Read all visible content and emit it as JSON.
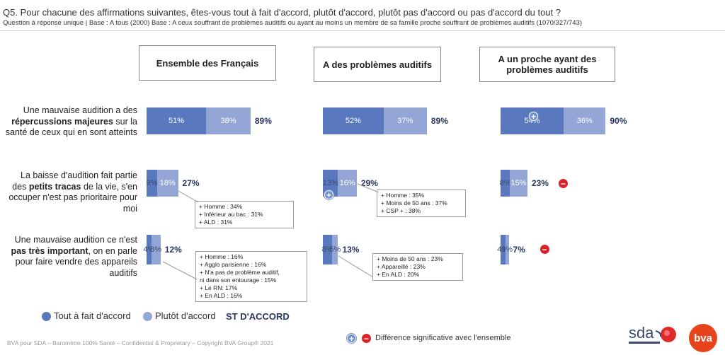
{
  "header": {
    "question": "Q5. Pour chacune des affirmations suivantes, êtes-vous tout à fait d'accord, plutôt d'accord, plutôt pas d'accord ou pas d'accord du tout ?",
    "base": "Question à réponse unique | Base : A tous (2000) Base : A ceux souffrant de problèmes auditifs ou ayant au moins un membre de sa famille proche souffrant de problèmes auditifs (1070/327/743)"
  },
  "columns": [
    "Ensemble des Français",
    "A des problèmes auditifs",
    "A un proche ayant des problèmes auditifs"
  ],
  "rows": [
    {
      "pre": "Une mauvaise audition a des",
      "bold": "répercussions majeures",
      "post": "sur la santé de ceux qui en sont atteints"
    },
    {
      "pre": "La baisse d'audition fait partie des",
      "bold": "petits tracas",
      "post": "de la vie, s'en occuper n'est pas prioritaire pour moi"
    },
    {
      "pre": "Une mauvaise audition ce n'est",
      "bold": "pas très important",
      "post": ", on en parle pour faire vendre des appareils auditifs"
    }
  ],
  "chart_data": {
    "type": "bar",
    "stacked": true,
    "orientation": "horizontal",
    "series": [
      {
        "name": "Tout à fait d'accord",
        "color": "#5a78be",
        "values": [
          [
            51,
            52,
            54
          ],
          [
            9,
            13,
            8
          ],
          [
            4,
            8,
            4
          ]
        ]
      },
      {
        "name": "Plutôt d'accord",
        "color": "#94a6d6",
        "values": [
          [
            38,
            37,
            36
          ],
          [
            18,
            16,
            15
          ],
          [
            8,
            5,
            3
          ]
        ]
      }
    ],
    "totals_label": "ST D'ACCORD",
    "totals": [
      [
        89,
        89,
        90
      ],
      [
        27,
        29,
        23
      ],
      [
        12,
        13,
        7
      ]
    ],
    "significance": [
      [
        "",
        "",
        "plus"
      ],
      [
        "",
        "plus",
        "minus"
      ],
      [
        "",
        "",
        "minus"
      ]
    ]
  },
  "notes": {
    "r1c0": [
      "+ Homme : 34%",
      "+ Inférieur au bac : 31%",
      "+ ALD : 31%"
    ],
    "r1c1": [
      "+ Homme : 35%",
      "+ Moins de 50 ans : 37%",
      "+ CSP + : 38%"
    ],
    "r2c0": [
      "+ Homme : 16%",
      "+ Agglo parisienne : 16%",
      "+ N'a pas de problème auditif,",
      "ni dans son entourage : 15%",
      "+ Le RN: 17%",
      "+ En ALD : 16%"
    ],
    "r2c1": [
      "+ Moins de 50 ans : 23%",
      "+ Appareillé : 23%",
      "+ En ALD : 20%"
    ]
  },
  "legend": {
    "series1": "Tout à fait d'accord",
    "series2": "Plutôt d'accord",
    "total": "ST D'ACCORD",
    "significance": "Différence significative avec l'ensemble"
  },
  "footer": "BVA pour SDA – Baromètre 100% Santé – Confidential & Proprietary – Copyright BVA Group® 2021",
  "logos": {
    "sda": "sda",
    "bva": "bva"
  }
}
